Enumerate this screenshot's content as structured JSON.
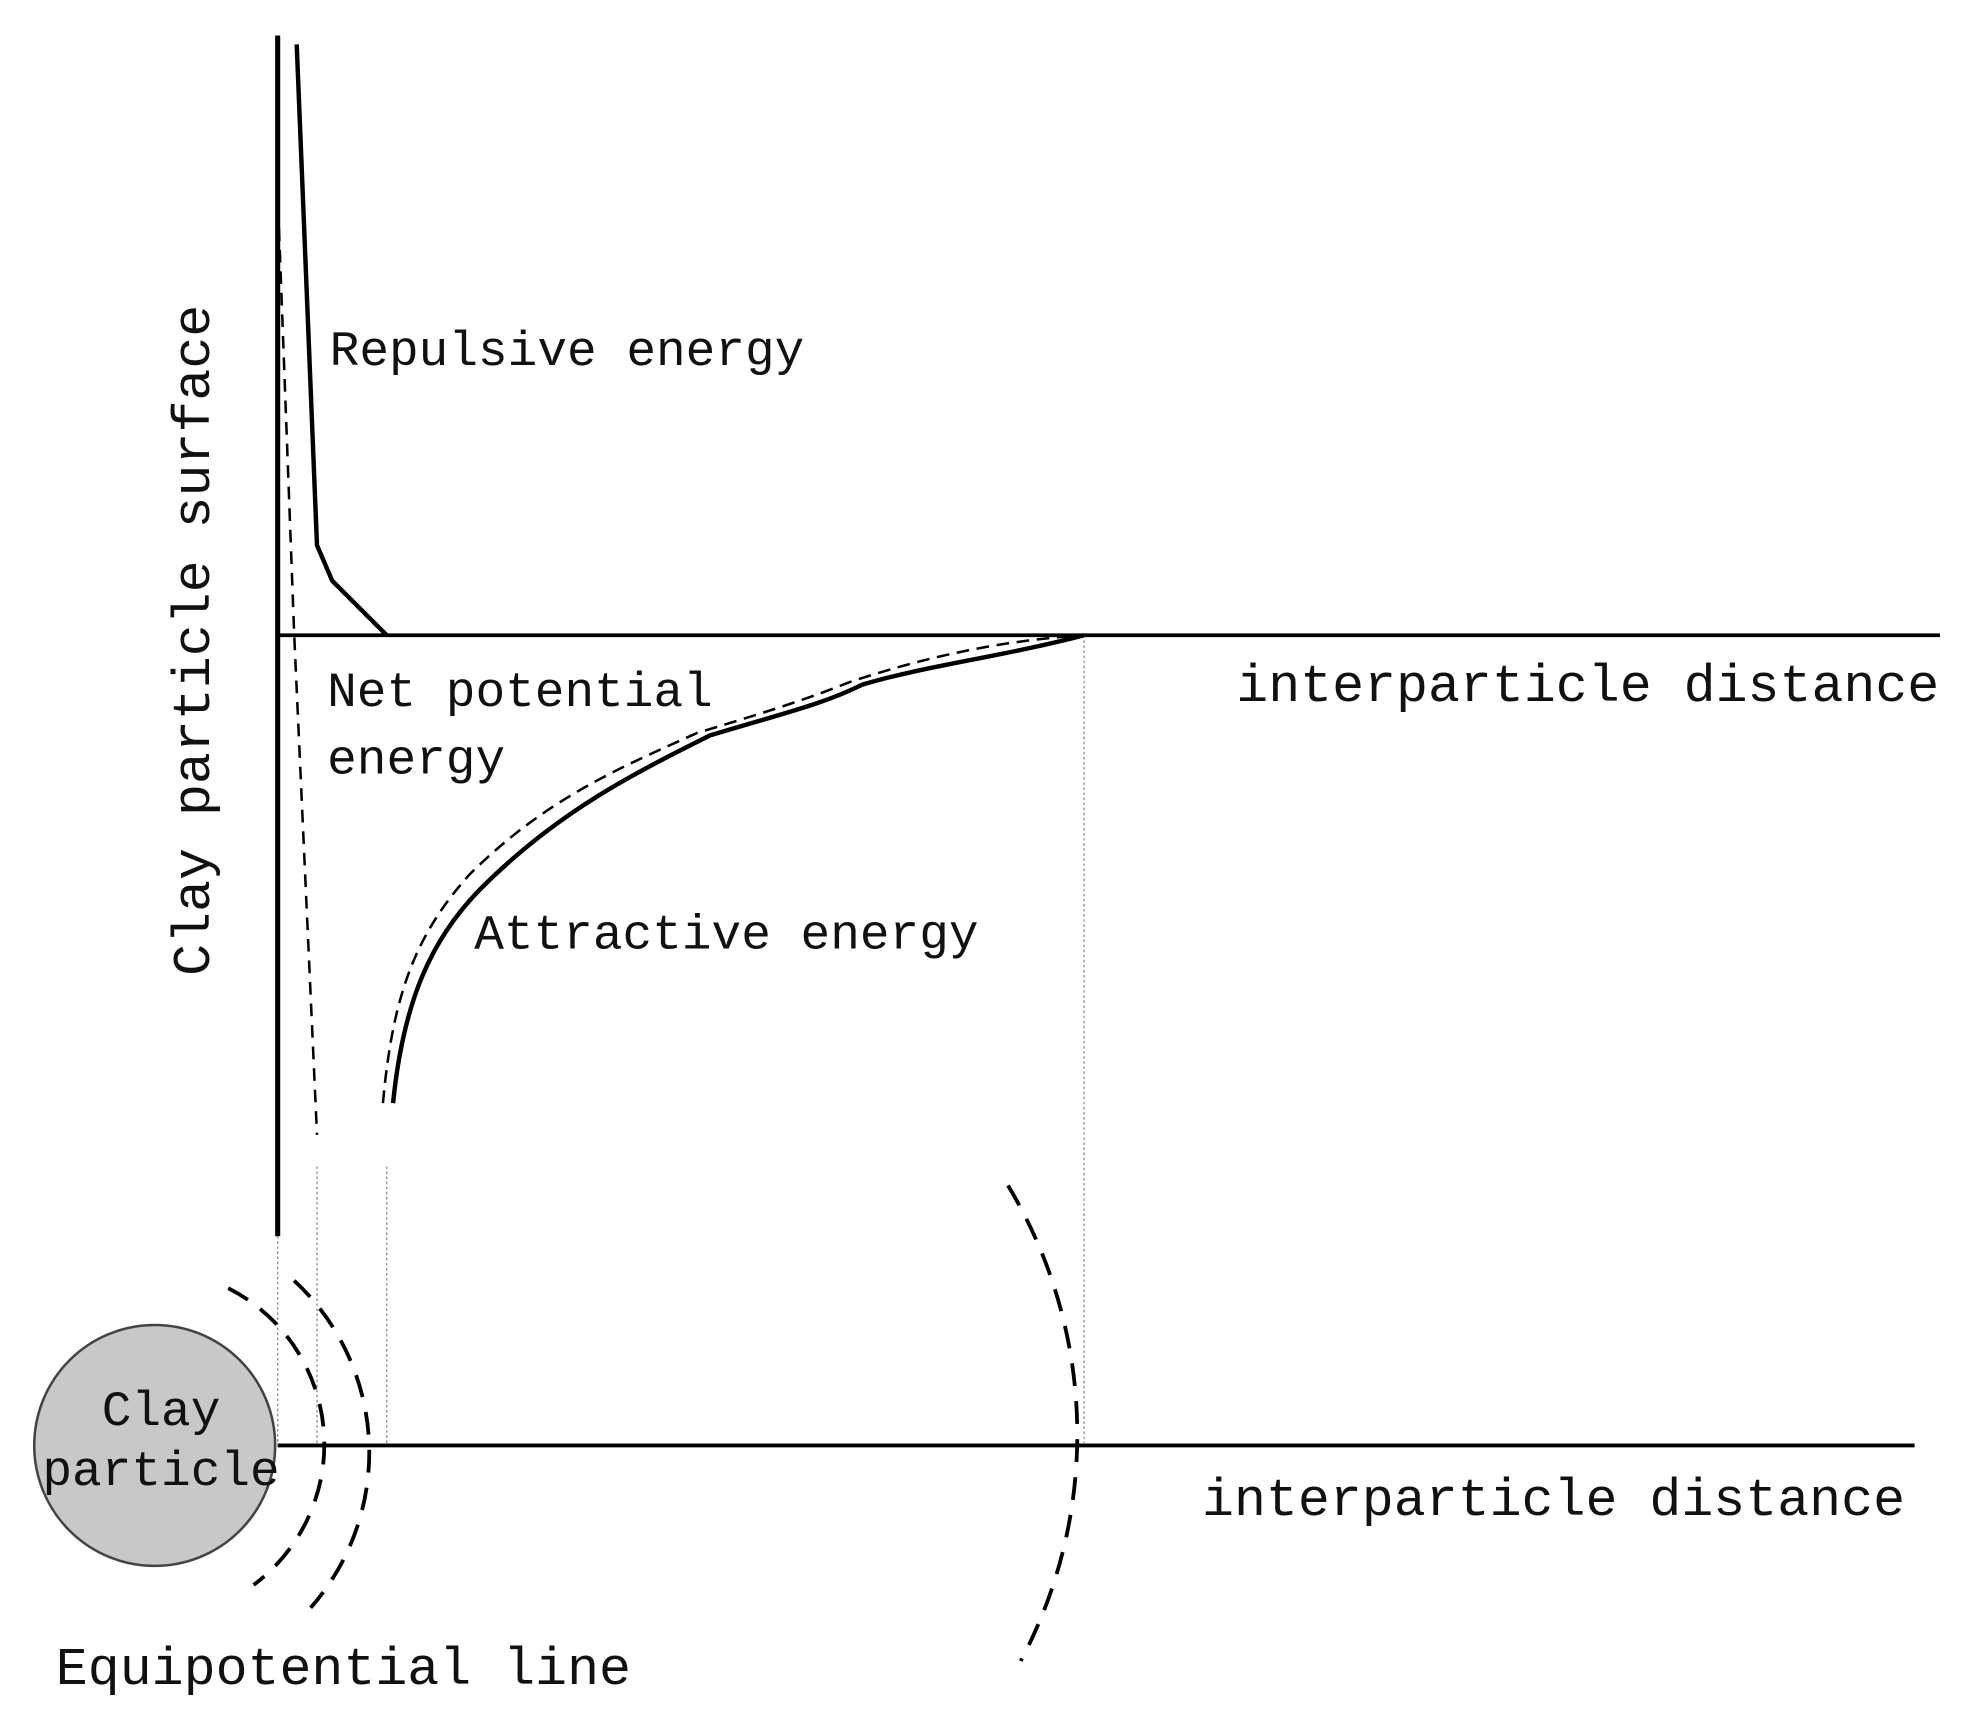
{
  "labels": {
    "y_axis": "Clay particle surface",
    "repulsive": "Repulsive energy",
    "net": [
      "Net potential",
      "energy"
    ],
    "attractive": "Attractive energy",
    "x_axis_top": "interparticle distance",
    "x_axis_bottom": "interparticle distance",
    "particle": [
      "Clay",
      "particle"
    ],
    "equipotential": "Equipotential line"
  }
}
